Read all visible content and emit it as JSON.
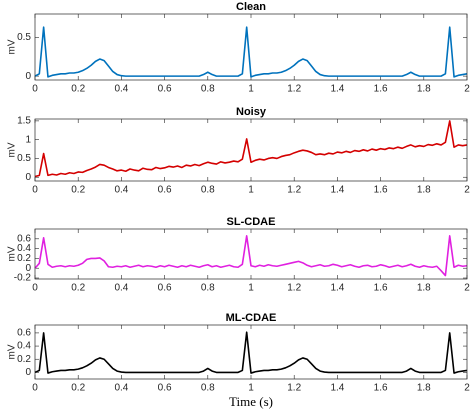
{
  "chart_data": [
    {
      "type": "line",
      "title": "Clean",
      "ylabel": "mV",
      "color": "#0072bd",
      "xlim": [
        0,
        2
      ],
      "xticks": [
        0,
        0.2,
        0.4,
        0.6,
        0.8,
        1,
        1.2,
        1.4,
        1.6,
        1.8,
        2
      ],
      "ylim": [
        -0.05,
        0.8
      ],
      "yticks": [
        0,
        0.5
      ],
      "x": [
        0,
        0.02,
        0.04,
        0.06,
        0.08,
        0.1,
        0.12,
        0.14,
        0.16,
        0.18,
        0.2,
        0.22,
        0.24,
        0.26,
        0.28,
        0.3,
        0.32,
        0.34,
        0.36,
        0.38,
        0.4,
        0.42,
        0.44,
        0.46,
        0.48,
        0.5,
        0.52,
        0.54,
        0.56,
        0.58,
        0.6,
        0.62,
        0.64,
        0.66,
        0.68,
        0.7,
        0.72,
        0.74,
        0.76,
        0.78,
        0.8,
        0.82,
        0.84,
        0.86,
        0.88,
        0.9,
        0.92,
        0.94,
        0.96,
        0.98,
        1,
        1.02,
        1.04,
        1.06,
        1.08,
        1.1,
        1.12,
        1.14,
        1.16,
        1.18,
        1.2,
        1.22,
        1.24,
        1.26,
        1.28,
        1.3,
        1.32,
        1.34,
        1.36,
        1.38,
        1.4,
        1.42,
        1.44,
        1.46,
        1.48,
        1.5,
        1.52,
        1.54,
        1.56,
        1.58,
        1.6,
        1.62,
        1.64,
        1.66,
        1.68,
        1.7,
        1.72,
        1.74,
        1.76,
        1.78,
        1.8,
        1.82,
        1.84,
        1.86,
        1.88,
        1.9,
        1.92,
        1.94,
        1.96,
        1.98,
        2
      ],
      "values": [
        0,
        0.03,
        0.63,
        -0.01,
        0.01,
        0.02,
        0.03,
        0.03,
        0.04,
        0.04,
        0.05,
        0.07,
        0.1,
        0.14,
        0.19,
        0.22,
        0.2,
        0.13,
        0.06,
        0.02,
        0.005,
        0,
        0,
        0,
        0,
        0,
        0,
        0,
        0,
        0,
        0,
        0,
        0,
        0,
        0,
        0,
        0,
        0,
        0,
        0.02,
        0.05,
        0.02,
        0,
        0,
        0,
        0,
        0,
        0,
        0.03,
        0.63,
        -0.01,
        0.01,
        0.02,
        0.03,
        0.03,
        0.04,
        0.04,
        0.05,
        0.07,
        0.1,
        0.14,
        0.19,
        0.22,
        0.2,
        0.13,
        0.06,
        0.02,
        0.005,
        0,
        0,
        0,
        0,
        0,
        0,
        0,
        0,
        0,
        0,
        0,
        0,
        0,
        0,
        0,
        0,
        0,
        0,
        0.02,
        0.05,
        0.02,
        0,
        0,
        0,
        0,
        0,
        0,
        0.03,
        0.63,
        -0.01,
        0.01,
        0.02,
        0.03
      ]
    },
    {
      "type": "line",
      "title": "Noisy",
      "ylabel": "mV",
      "color": "#d40000",
      "xlim": [
        0,
        2
      ],
      "xticks": [
        0,
        0.2,
        0.4,
        0.6,
        0.8,
        1,
        1.2,
        1.4,
        1.6,
        1.8,
        2
      ],
      "ylim": [
        -0.1,
        1.55
      ],
      "yticks": [
        0,
        0.5,
        1,
        1.5
      ],
      "x": [
        0,
        0.02,
        0.04,
        0.06,
        0.08,
        0.1,
        0.12,
        0.14,
        0.16,
        0.18,
        0.2,
        0.22,
        0.24,
        0.26,
        0.28,
        0.3,
        0.32,
        0.34,
        0.36,
        0.38,
        0.4,
        0.42,
        0.44,
        0.46,
        0.48,
        0.5,
        0.52,
        0.54,
        0.56,
        0.58,
        0.6,
        0.62,
        0.64,
        0.66,
        0.68,
        0.7,
        0.72,
        0.74,
        0.76,
        0.78,
        0.8,
        0.82,
        0.84,
        0.86,
        0.88,
        0.9,
        0.92,
        0.94,
        0.96,
        0.98,
        1,
        1.02,
        1.04,
        1.06,
        1.08,
        1.1,
        1.12,
        1.14,
        1.16,
        1.18,
        1.2,
        1.22,
        1.24,
        1.26,
        1.28,
        1.3,
        1.32,
        1.34,
        1.36,
        1.38,
        1.4,
        1.42,
        1.44,
        1.46,
        1.48,
        1.5,
        1.52,
        1.54,
        1.56,
        1.58,
        1.6,
        1.62,
        1.64,
        1.66,
        1.68,
        1.7,
        1.72,
        1.74,
        1.76,
        1.78,
        1.8,
        1.82,
        1.84,
        1.86,
        1.88,
        1.9,
        1.92,
        1.94,
        1.96,
        1.98,
        2
      ],
      "values": [
        0.02,
        0.05,
        0.63,
        0.05,
        0.08,
        0.06,
        0.1,
        0.08,
        0.12,
        0.1,
        0.14,
        0.13,
        0.18,
        0.22,
        0.27,
        0.34,
        0.32,
        0.26,
        0.22,
        0.17,
        0.19,
        0.16,
        0.22,
        0.19,
        0.17,
        0.24,
        0.21,
        0.2,
        0.26,
        0.23,
        0.25,
        0.29,
        0.27,
        0.3,
        0.26,
        0.32,
        0.3,
        0.34,
        0.31,
        0.36,
        0.4,
        0.37,
        0.35,
        0.41,
        0.38,
        0.4,
        0.43,
        0.41,
        0.48,
        1.02,
        0.4,
        0.45,
        0.48,
        0.46,
        0.5,
        0.52,
        0.5,
        0.55,
        0.58,
        0.6,
        0.65,
        0.69,
        0.72,
        0.7,
        0.66,
        0.6,
        0.62,
        0.6,
        0.64,
        0.62,
        0.67,
        0.65,
        0.69,
        0.66,
        0.71,
        0.69,
        0.73,
        0.7,
        0.75,
        0.72,
        0.76,
        0.74,
        0.78,
        0.76,
        0.8,
        0.77,
        0.82,
        0.86,
        0.81,
        0.84,
        0.82,
        0.87,
        0.85,
        0.89,
        0.86,
        0.93,
        1.5,
        0.8,
        0.86,
        0.84,
        0.86
      ]
    },
    {
      "type": "line",
      "title": "SL-CDAE",
      "ylabel": "mV",
      "color": "#e020e0",
      "xlim": [
        0,
        2
      ],
      "xticks": [
        0,
        0.2,
        0.4,
        0.6,
        0.8,
        1,
        1.2,
        1.4,
        1.6,
        1.8,
        2
      ],
      "ylim": [
        -0.22,
        0.8
      ],
      "yticks": [
        -0.2,
        0,
        0.2,
        0.4,
        0.6
      ],
      "x": [
        0,
        0.02,
        0.04,
        0.06,
        0.08,
        0.1,
        0.12,
        0.14,
        0.16,
        0.18,
        0.2,
        0.22,
        0.24,
        0.26,
        0.28,
        0.3,
        0.32,
        0.34,
        0.36,
        0.38,
        0.4,
        0.42,
        0.44,
        0.46,
        0.48,
        0.5,
        0.52,
        0.54,
        0.56,
        0.58,
        0.6,
        0.62,
        0.64,
        0.66,
        0.68,
        0.7,
        0.72,
        0.74,
        0.76,
        0.78,
        0.8,
        0.82,
        0.84,
        0.86,
        0.88,
        0.9,
        0.92,
        0.94,
        0.96,
        0.98,
        1,
        1.02,
        1.04,
        1.06,
        1.08,
        1.1,
        1.12,
        1.14,
        1.16,
        1.18,
        1.2,
        1.22,
        1.24,
        1.26,
        1.28,
        1.3,
        1.32,
        1.34,
        1.36,
        1.38,
        1.4,
        1.42,
        1.44,
        1.46,
        1.48,
        1.5,
        1.52,
        1.54,
        1.56,
        1.58,
        1.6,
        1.62,
        1.64,
        1.66,
        1.68,
        1.7,
        1.72,
        1.74,
        1.76,
        1.78,
        1.8,
        1.82,
        1.84,
        1.86,
        1.88,
        1.9,
        1.92,
        1.94,
        1.96,
        1.98,
        2
      ],
      "values": [
        0,
        0.1,
        0.62,
        0.08,
        0.02,
        0.04,
        0.05,
        0.03,
        0.05,
        0.04,
        0.06,
        0.1,
        0.18,
        0.2,
        0.2,
        0.21,
        0.15,
        0.03,
        0.02,
        0.04,
        0.03,
        0.05,
        0.02,
        0.04,
        0.06,
        0.03,
        0.05,
        0.04,
        0.02,
        0.05,
        0.03,
        0.06,
        0.04,
        0.02,
        0.05,
        0.03,
        0.06,
        0.04,
        0.02,
        0.05,
        0.07,
        0.03,
        0.05,
        0.02,
        0.04,
        0.06,
        0.03,
        0.02,
        0.08,
        0.66,
        0.05,
        0.03,
        0.06,
        0.04,
        0.07,
        0.05,
        0.04,
        0.06,
        0.08,
        0.1,
        0.12,
        0.14,
        0.11,
        0.06,
        0.03,
        0.05,
        0.07,
        0.04,
        0.05,
        0.08,
        0.06,
        0.03,
        0.05,
        0.07,
        0.04,
        0.02,
        0.05,
        0.06,
        0.03,
        0.04,
        0.07,
        0.05,
        0.02,
        0.04,
        0.06,
        0.03,
        0.05,
        0.08,
        0.04,
        0.02,
        0.05,
        0.03,
        0.02,
        0.04,
        -0.05,
        -0.15,
        0.66,
        0.02,
        0.06,
        0.04,
        0.05
      ]
    },
    {
      "type": "line",
      "title": "ML-CDAE",
      "ylabel": "mV",
      "xlabel": "Time (s)",
      "color": "#000000",
      "xlim": [
        0,
        2
      ],
      "xticks": [
        0,
        0.2,
        0.4,
        0.6,
        0.8,
        1,
        1.2,
        1.4,
        1.6,
        1.8,
        2
      ],
      "ylim": [
        -0.1,
        0.72
      ],
      "yticks": [
        0,
        0.2,
        0.4,
        0.6
      ],
      "x": [
        0,
        0.02,
        0.04,
        0.06,
        0.08,
        0.1,
        0.12,
        0.14,
        0.16,
        0.18,
        0.2,
        0.22,
        0.24,
        0.26,
        0.28,
        0.3,
        0.32,
        0.34,
        0.36,
        0.38,
        0.4,
        0.42,
        0.44,
        0.46,
        0.48,
        0.5,
        0.52,
        0.54,
        0.56,
        0.58,
        0.6,
        0.62,
        0.64,
        0.66,
        0.68,
        0.7,
        0.72,
        0.74,
        0.76,
        0.78,
        0.8,
        0.82,
        0.84,
        0.86,
        0.88,
        0.9,
        0.92,
        0.94,
        0.96,
        0.98,
        1,
        1.02,
        1.04,
        1.06,
        1.08,
        1.1,
        1.12,
        1.14,
        1.16,
        1.18,
        1.2,
        1.22,
        1.24,
        1.26,
        1.28,
        1.3,
        1.32,
        1.34,
        1.36,
        1.38,
        1.4,
        1.42,
        1.44,
        1.46,
        1.48,
        1.5,
        1.52,
        1.54,
        1.56,
        1.58,
        1.6,
        1.62,
        1.64,
        1.66,
        1.68,
        1.7,
        1.72,
        1.74,
        1.76,
        1.78,
        1.8,
        1.82,
        1.84,
        1.86,
        1.88,
        1.9,
        1.92,
        1.94,
        1.96,
        1.98,
        2
      ],
      "values": [
        0,
        0.03,
        0.6,
        -0.01,
        0.01,
        0.02,
        0.03,
        0.03,
        0.04,
        0.04,
        0.05,
        0.07,
        0.1,
        0.14,
        0.19,
        0.22,
        0.2,
        0.13,
        0.06,
        0.02,
        0.005,
        0,
        0,
        0,
        0,
        0,
        0,
        0,
        0,
        0,
        0,
        0,
        0,
        0,
        0,
        0,
        0,
        0,
        0,
        0.02,
        0.06,
        0.02,
        0,
        0,
        0,
        0,
        0,
        0,
        0.03,
        0.61,
        -0.01,
        0.01,
        0.02,
        0.03,
        0.03,
        0.04,
        0.04,
        0.05,
        0.07,
        0.1,
        0.14,
        0.19,
        0.22,
        0.2,
        0.13,
        0.06,
        0.02,
        0.005,
        0,
        0,
        0,
        0,
        0,
        0,
        0,
        0,
        0,
        0,
        0,
        0,
        0,
        0,
        0,
        0,
        0,
        0,
        0.02,
        0.06,
        0.02,
        0,
        0,
        0,
        0,
        0,
        0,
        0.03,
        0.6,
        -0.01,
        0.01,
        0.02,
        0.03
      ]
    }
  ]
}
